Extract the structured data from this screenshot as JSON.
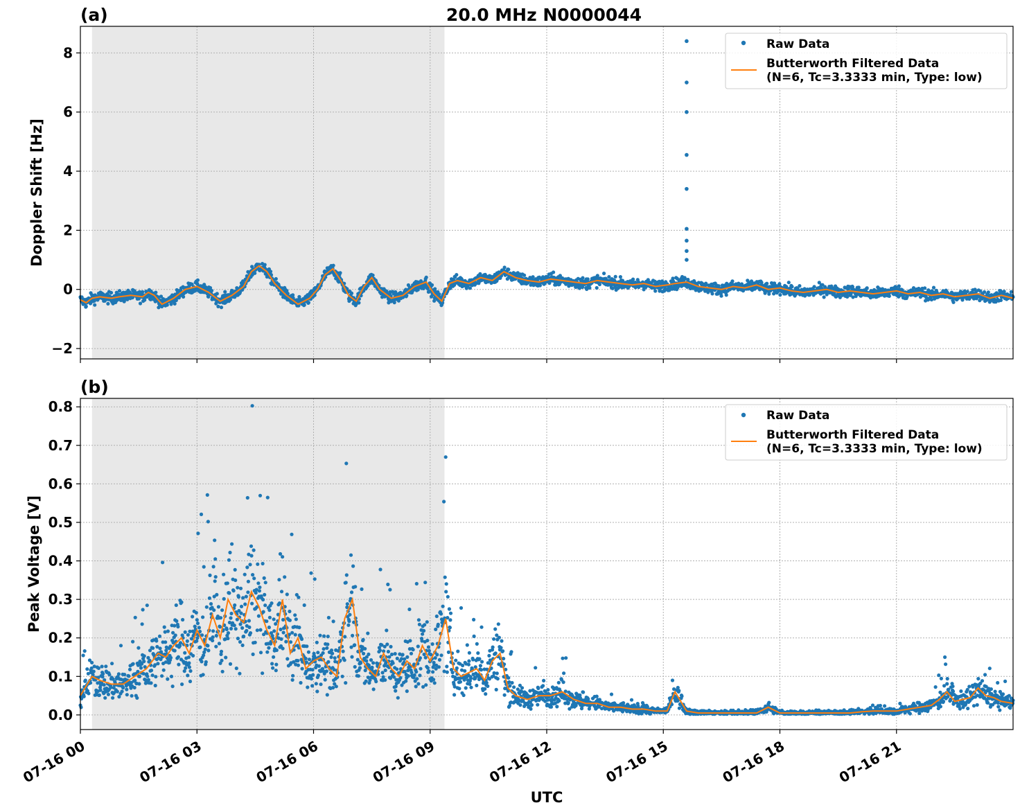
{
  "colors": {
    "raw": "#1f77b4",
    "filtered": "#ff7f0e",
    "shade": "#e8e8e8",
    "grid": "#b0b0b0"
  },
  "chart_data": {
    "type": "scatter",
    "title": "20.0 MHz N0000044",
    "xlabel": "UTC",
    "x_unit": "hours UTC on 07-16",
    "x_range": [
      0,
      24
    ],
    "x_ticks": [
      0,
      3,
      6,
      9,
      12,
      15,
      18,
      21
    ],
    "x_tick_labels": [
      "07-16 00",
      "07-16 03",
      "07-16 06",
      "07-16 09",
      "07-16 12",
      "07-16 15",
      "07-16 18",
      "07-16 21"
    ],
    "shaded_interval_hours": [
      0.3,
      9.37
    ],
    "grid": true,
    "legend_placement": "top-right",
    "legend": {
      "raw": "Raw Data",
      "filtered_line1": "Butterworth Filtered Data",
      "filtered_line2": "(N=6, Tc=3.3333 min, Type: low)"
    },
    "panels": [
      {
        "label": "(a)",
        "ylabel": "Doppler Shift [Hz]",
        "ylim": [
          -2.35,
          8.9
        ],
        "y_ticks": [
          -2,
          0,
          2,
          4,
          6,
          8
        ],
        "y_tick_labels": [
          "−2",
          "0",
          "2",
          "4",
          "6",
          "8"
        ],
        "series": [
          {
            "kind": "filtered",
            "x": [
              0,
              0.15,
              0.3,
              0.5,
              0.8,
              1.0,
              1.3,
              1.6,
              1.75,
              1.9,
              2.1,
              2.4,
              2.7,
              3.0,
              3.3,
              3.6,
              3.9,
              4.2,
              4.4,
              4.6,
              4.8,
              5.0,
              5.3,
              5.6,
              5.9,
              6.1,
              6.3,
              6.5,
              6.7,
              6.9,
              7.1,
              7.3,
              7.5,
              7.7,
              8.0,
              8.3,
              8.6,
              8.9,
              9.1,
              9.3,
              9.5,
              9.7,
              10.0,
              10.3,
              10.6,
              10.9,
              11.2,
              11.5,
              11.8,
              12.1,
              12.4,
              12.7,
              13.0,
              13.3,
              13.6,
              13.9,
              14.2,
              14.5,
              14.8,
              15.1,
              15.3,
              15.6,
              15.9,
              16.2,
              16.5,
              16.8,
              17.1,
              17.4,
              17.7,
              18.0,
              18.3,
              18.6,
              18.9,
              19.2,
              19.5,
              19.8,
              20.1,
              20.4,
              20.7,
              21.0,
              21.3,
              21.6,
              21.9,
              22.2,
              22.5,
              22.8,
              23.1,
              23.4,
              23.7,
              24.0
            ],
            "y": [
              -0.35,
              -0.45,
              -0.3,
              -0.25,
              -0.3,
              -0.25,
              -0.2,
              -0.25,
              -0.1,
              -0.2,
              -0.5,
              -0.3,
              0.0,
              0.1,
              -0.1,
              -0.4,
              -0.2,
              0.1,
              0.6,
              0.8,
              0.6,
              0.2,
              -0.2,
              -0.5,
              -0.3,
              0.0,
              0.5,
              0.7,
              0.3,
              -0.2,
              -0.4,
              0.1,
              0.4,
              0.0,
              -0.3,
              -0.2,
              0.1,
              0.25,
              -0.15,
              -0.4,
              0.2,
              0.3,
              0.2,
              0.4,
              0.3,
              0.6,
              0.4,
              0.3,
              0.25,
              0.35,
              0.3,
              0.25,
              0.2,
              0.3,
              0.25,
              0.2,
              0.15,
              0.2,
              0.1,
              0.15,
              0.2,
              0.25,
              0.1,
              0.05,
              0.0,
              0.1,
              0.05,
              0.15,
              0.0,
              0.05,
              -0.05,
              -0.1,
              -0.05,
              0.0,
              -0.1,
              -0.05,
              -0.1,
              -0.15,
              -0.1,
              -0.05,
              -0.15,
              -0.1,
              -0.2,
              -0.15,
              -0.25,
              -0.2,
              -0.15,
              -0.3,
              -0.2,
              -0.3
            ]
          },
          {
            "kind": "raw_spike",
            "x": [
              15.6,
              15.6,
              15.6,
              15.6,
              15.6,
              15.6,
              15.6,
              15.6,
              15.6
            ],
            "y": [
              8.4,
              7.0,
              6.0,
              4.55,
              3.4,
              2.05,
              1.65,
              1.3,
              1.0
            ]
          }
        ]
      },
      {
        "label": "(b)",
        "ylabel": "Peak Voltage [V]",
        "ylim": [
          -0.038,
          0.822
        ],
        "y_ticks": [
          0.0,
          0.1,
          0.2,
          0.3,
          0.4,
          0.5,
          0.6,
          0.7,
          0.8
        ],
        "y_tick_labels": [
          "0.0",
          "0.1",
          "0.2",
          "0.3",
          "0.4",
          "0.5",
          "0.6",
          "0.7",
          "0.8"
        ],
        "series": [
          {
            "kind": "filtered",
            "x": [
              0,
              0.3,
              0.5,
              0.8,
              1.1,
              1.4,
              1.7,
              2.0,
              2.2,
              2.4,
              2.6,
              2.8,
              3.0,
              3.2,
              3.4,
              3.6,
              3.8,
              4.0,
              4.2,
              4.4,
              4.6,
              4.8,
              5.0,
              5.2,
              5.4,
              5.6,
              5.8,
              6.0,
              6.2,
              6.4,
              6.6,
              6.8,
              7.0,
              7.2,
              7.4,
              7.6,
              7.8,
              8.0,
              8.2,
              8.4,
              8.6,
              8.8,
              9.0,
              9.2,
              9.4,
              9.6,
              9.8,
              10.0,
              10.2,
              10.4,
              10.6,
              10.8,
              11.0,
              11.2,
              11.5,
              11.8,
              12.1,
              12.4,
              12.7,
              13.0,
              13.3,
              13.6,
              13.9,
              14.2,
              14.5,
              14.8,
              15.1,
              15.3,
              15.6,
              15.9,
              16.2,
              16.5,
              16.8,
              17.1,
              17.4,
              17.7,
              18.0,
              18.3,
              18.6,
              18.9,
              19.2,
              19.5,
              19.8,
              20.1,
              20.4,
              20.7,
              21.0,
              21.3,
              21.6,
              21.9,
              22.1,
              22.3,
              22.5,
              22.7,
              22.9,
              23.1,
              23.3,
              23.5,
              23.7,
              24.0
            ],
            "y": [
              0.05,
              0.1,
              0.09,
              0.08,
              0.08,
              0.1,
              0.12,
              0.16,
              0.15,
              0.18,
              0.2,
              0.16,
              0.22,
              0.18,
              0.26,
              0.2,
              0.3,
              0.26,
              0.24,
              0.32,
              0.28,
              0.22,
              0.18,
              0.3,
              0.16,
              0.2,
              0.12,
              0.14,
              0.15,
              0.12,
              0.1,
              0.25,
              0.3,
              0.15,
              0.12,
              0.1,
              0.16,
              0.12,
              0.1,
              0.14,
              0.12,
              0.18,
              0.14,
              0.18,
              0.25,
              0.12,
              0.1,
              0.11,
              0.12,
              0.09,
              0.14,
              0.16,
              0.07,
              0.05,
              0.04,
              0.05,
              0.05,
              0.06,
              0.04,
              0.03,
              0.03,
              0.02,
              0.02,
              0.015,
              0.015,
              0.01,
              0.01,
              0.06,
              0.01,
              0.005,
              0.005,
              0.005,
              0.005,
              0.005,
              0.005,
              0.02,
              0.005,
              0.005,
              0.005,
              0.005,
              0.005,
              0.005,
              0.005,
              0.008,
              0.01,
              0.01,
              0.01,
              0.015,
              0.02,
              0.025,
              0.04,
              0.06,
              0.035,
              0.04,
              0.045,
              0.07,
              0.05,
              0.045,
              0.035,
              0.03
            ]
          }
        ]
      }
    ]
  }
}
